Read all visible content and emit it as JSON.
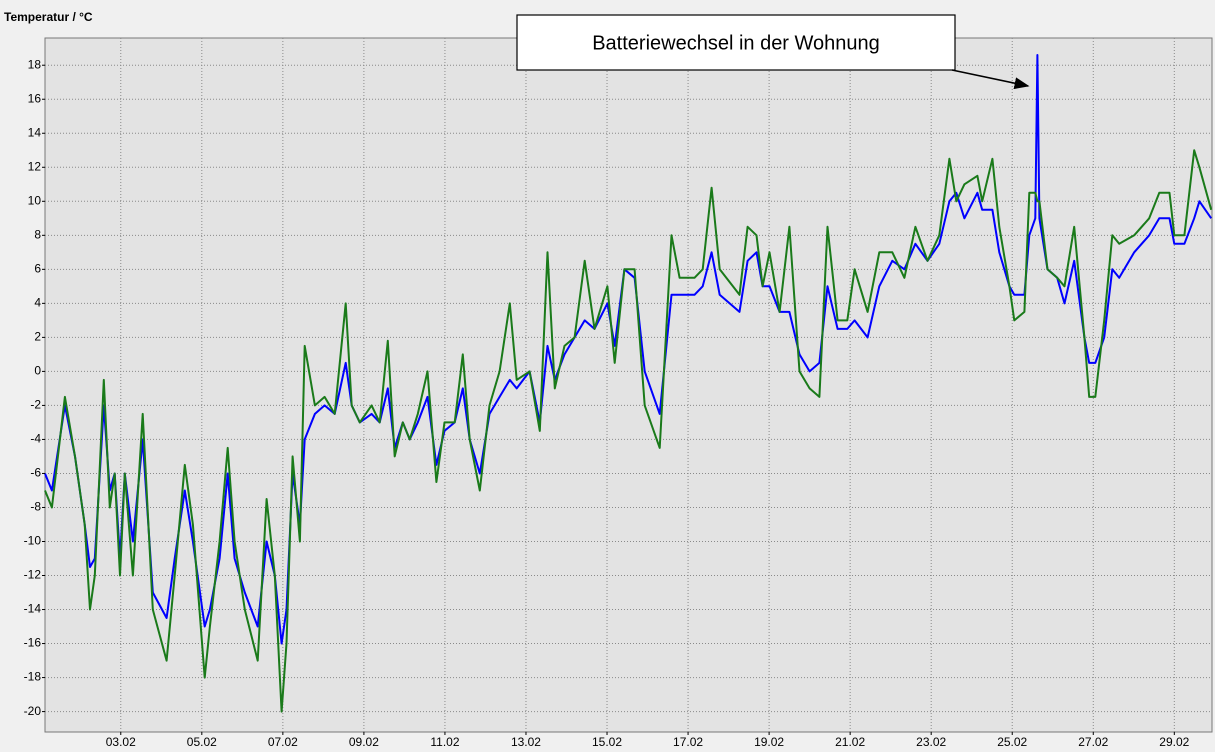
{
  "chart_data": {
    "type": "line",
    "title": "Temperatur / °C",
    "annotation": "Batteriewechsel in der Wohnung",
    "x": [
      1.13,
      1.3,
      1.62,
      1.87,
      2.11,
      2.24,
      2.36,
      2.58,
      2.73,
      2.85,
      2.98,
      3.1,
      3.3,
      3.54,
      3.79,
      4.13,
      4.33,
      4.58,
      4.78,
      5.07,
      5.2,
      5.44,
      5.64,
      5.81,
      6.06,
      6.38,
      6.6,
      6.8,
      6.97,
      7.09,
      7.24,
      7.42,
      7.54,
      7.79,
      8.03,
      8.28,
      8.55,
      8.7,
      8.9,
      9.19,
      9.39,
      9.59,
      9.76,
      9.96,
      10.13,
      10.33,
      10.57,
      10.79,
      10.99,
      11.24,
      11.44,
      11.61,
      11.86,
      12.1,
      12.35,
      12.6,
      12.77,
      13.09,
      13.34,
      13.53,
      13.71,
      13.95,
      14.2,
      14.45,
      14.69,
      15.01,
      15.19,
      15.43,
      15.68,
      15.93,
      16.3,
      16.59,
      16.79,
      17.16,
      17.36,
      17.58,
      17.78,
      18.27,
      18.47,
      18.69,
      18.84,
      19.01,
      19.26,
      19.5,
      19.75,
      20.0,
      20.24,
      20.44,
      20.69,
      20.93,
      21.11,
      21.43,
      21.72,
      22.04,
      22.34,
      22.61,
      22.91,
      23.2,
      23.45,
      23.62,
      23.82,
      24.14,
      24.26,
      24.51,
      24.68,
      24.93,
      25.05,
      25.3,
      25.42,
      25.57,
      25.62,
      25.67,
      25.87,
      26.11,
      26.29,
      26.53,
      26.78,
      26.9,
      27.05,
      27.27,
      27.47,
      27.64,
      28.01,
      28.38,
      28.63,
      28.88,
      29.0,
      29.25,
      29.49,
      29.62,
      29.91
    ],
    "series": [
      {
        "color": "#0000ff",
        "values": [
          -6,
          -7,
          -2,
          -5,
          -9,
          -11.5,
          -11,
          -2,
          -7,
          -6,
          -11,
          -6,
          -10,
          -4,
          -13,
          -14.5,
          -11,
          -7,
          -10,
          -15,
          -14,
          -11,
          -6,
          -11,
          -13,
          -15,
          -10,
          -12,
          -16,
          -14,
          -6,
          -9,
          -4,
          -2.5,
          -2,
          -2.5,
          0.5,
          -2,
          -3,
          -2.5,
          -3,
          -1,
          -4.5,
          -3,
          -4,
          -3,
          -1.5,
          -5.5,
          -3.5,
          -3,
          -1,
          -4,
          -6,
          -2.5,
          -1.5,
          -0.5,
          -1,
          0,
          -3,
          1.5,
          -0.5,
          1,
          2,
          3,
          2.5,
          4,
          1.5,
          6,
          5.5,
          0,
          -2.5,
          4.5,
          4.5,
          4.5,
          5,
          7,
          4.5,
          3.5,
          6.5,
          7,
          5,
          5,
          3.5,
          3.5,
          1,
          0,
          0.5,
          5,
          2.5,
          2.5,
          3,
          2,
          5,
          6.5,
          6,
          7.5,
          6.5,
          7.5,
          10,
          10.5,
          9,
          10.5,
          9.5,
          9.5,
          7,
          5,
          4.5,
          4.5,
          8,
          9,
          18.6,
          9,
          6,
          5.5,
          4,
          6.5,
          2,
          0.5,
          0.5,
          2,
          6,
          5.5,
          7,
          8,
          9,
          9,
          7.5,
          7.5,
          9,
          10,
          9
        ]
      },
      {
        "color": "#1a7a1a",
        "values": [
          -7,
          -8,
          -1.5,
          -5,
          -9,
          -14,
          -12,
          -0.5,
          -8,
          -6,
          -12,
          -6,
          -12,
          -2.5,
          -14,
          -17,
          -12,
          -5.5,
          -9,
          -18,
          -15,
          -10,
          -4.5,
          -10,
          -14,
          -17,
          -7.5,
          -12,
          -20,
          -16,
          -5,
          -10,
          1.5,
          -2,
          -1.5,
          -2.5,
          4,
          -2,
          -3,
          -2,
          -3,
          1.8,
          -5,
          -3,
          -4,
          -2.5,
          0,
          -6.5,
          -3,
          -3,
          1,
          -4,
          -7,
          -2,
          0,
          4,
          -0.5,
          0,
          -3.5,
          7,
          -1,
          1.5,
          2,
          6.5,
          2.5,
          5,
          0.5,
          6,
          6,
          -2,
          -4.5,
          8,
          5.5,
          5.5,
          6,
          10.8,
          6,
          4.5,
          8.5,
          8,
          5,
          7,
          3.5,
          8.5,
          0,
          -1,
          -1.5,
          8.5,
          3,
          3,
          6,
          3.5,
          7,
          7,
          5.5,
          8.5,
          6.5,
          8,
          12.5,
          10,
          11,
          11.5,
          10,
          12.5,
          8.5,
          5,
          3,
          3.5,
          10.5,
          10.5,
          10,
          10,
          6,
          5.5,
          5,
          8.5,
          2,
          -1.5,
          -1.5,
          3,
          8,
          7.5,
          8,
          9,
          10.5,
          10.5,
          8,
          8,
          13,
          12,
          9.5
        ]
      }
    ],
    "xlim": [
      1.13,
      29.93
    ],
    "xticks": [
      {
        "value": 3,
        "label": "03.02"
      },
      {
        "value": 5,
        "label": "05.02"
      },
      {
        "value": 7,
        "label": "07.02"
      },
      {
        "value": 9,
        "label": "09.02"
      },
      {
        "value": 11,
        "label": "11.02"
      },
      {
        "value": 13,
        "label": "13.02"
      },
      {
        "value": 15,
        "label": "15.02"
      },
      {
        "value": 17,
        "label": "17.02"
      },
      {
        "value": 19,
        "label": "19.02"
      },
      {
        "value": 21,
        "label": "21.02"
      },
      {
        "value": 23,
        "label": "23.02"
      },
      {
        "value": 25,
        "label": "25.02"
      },
      {
        "value": 27,
        "label": "27.02"
      },
      {
        "value": 29,
        "label": "29.02"
      }
    ],
    "ylim": [
      -21.2,
      19.6
    ],
    "yticks": [
      -20,
      -18,
      -16,
      -14,
      -12,
      -10,
      -8,
      -6,
      -4,
      -2,
      0,
      2,
      4,
      6,
      8,
      10,
      12,
      14,
      16,
      18
    ],
    "grid": true
  }
}
